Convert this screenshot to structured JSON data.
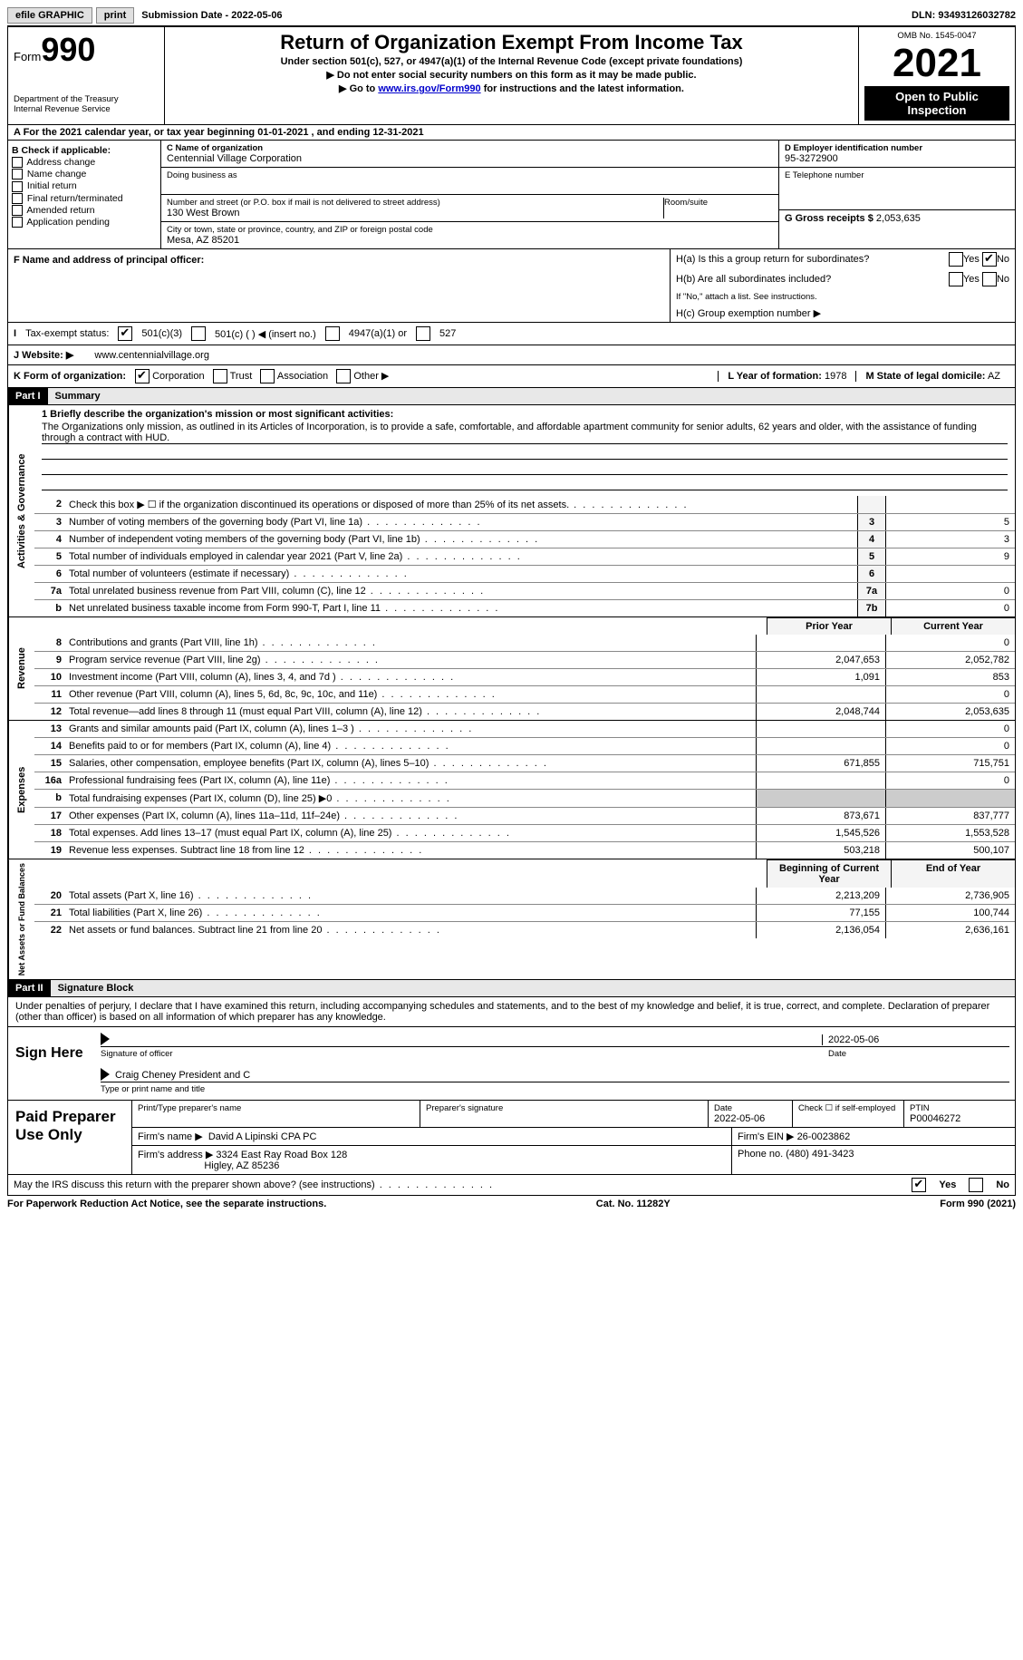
{
  "topbar": {
    "efile": "efile GRAPHIC",
    "print": "print",
    "subdate_label": "Submission Date - ",
    "subdate": "2022-05-06",
    "dln_label": "DLN: ",
    "dln": "93493126032782"
  },
  "header": {
    "form_label": "Form",
    "form_no": "990",
    "dept": "Department of the Treasury",
    "irs": "Internal Revenue Service",
    "title": "Return of Organization Exempt From Income Tax",
    "sub1": "Under section 501(c), 527, or 4947(a)(1) of the Internal Revenue Code (except private foundations)",
    "sub2": "▶ Do not enter social security numbers on this form as it may be made public.",
    "sub3_a": "▶ Go to ",
    "sub3_link": "www.irs.gov/Form990",
    "sub3_b": " for instructions and the latest information.",
    "omb": "OMB No. 1545-0047",
    "year": "2021",
    "open": "Open to Public Inspection"
  },
  "row_a": "A For the 2021 calendar year, or tax year beginning 01-01-2021   , and ending 12-31-2021",
  "b": {
    "label": "B Check if applicable:",
    "items": [
      "Address change",
      "Name change",
      "Initial return",
      "Final return/terminated",
      "Amended return",
      "Application pending"
    ]
  },
  "c": {
    "name_lbl": "C Name of organization",
    "name": "Centennial Village Corporation",
    "dba_lbl": "Doing business as",
    "addr_lbl": "Number and street (or P.O. box if mail is not delivered to street address)",
    "room_lbl": "Room/suite",
    "addr": "130 West Brown",
    "city_lbl": "City or town, state or province, country, and ZIP or foreign postal code",
    "city": "Mesa, AZ  85201"
  },
  "d": {
    "lbl": "D Employer identification number",
    "val": "95-3272900"
  },
  "e": {
    "lbl": "E Telephone number",
    "val": ""
  },
  "g": {
    "lbl": "G Gross receipts $",
    "val": "2,053,635"
  },
  "f": {
    "lbl": "F  Name and address of principal officer:",
    "val": ""
  },
  "h": {
    "a_lbl": "H(a)  Is this a group return for subordinates?",
    "b_lbl": "H(b)  Are all subordinates included?",
    "note": "If \"No,\" attach a list. See instructions.",
    "c_lbl": "H(c)  Group exemption number ▶",
    "yes": "Yes",
    "no": "No"
  },
  "i": {
    "lbl": "Tax-exempt status:",
    "opt1": "501(c)(3)",
    "opt2": "501(c) (  ) ◀ (insert no.)",
    "opt3": "4947(a)(1) or",
    "opt4": "527"
  },
  "j": {
    "lbl": "J  Website: ▶",
    "val": "www.centennialvillage.org"
  },
  "k": {
    "lbl": "K Form of organization:",
    "opts": [
      "Corporation",
      "Trust",
      "Association",
      "Other ▶"
    ],
    "l_lbl": "L Year of formation:",
    "l_val": "1978",
    "m_lbl": "M State of legal domicile:",
    "m_val": "AZ"
  },
  "part1": {
    "tag": "Part I",
    "title": "Summary"
  },
  "mission": {
    "q": "1  Briefly describe the organization's mission or most significant activities:",
    "text": "The Organizations only mission, as outlined in its Articles of Incorporation, is to provide a safe, comfortable, and affordable apartment community for senior adults, 62 years and older, with the assistance of funding through a contract with HUD."
  },
  "gov_lines": [
    {
      "n": "2",
      "t": "Check this box ▶ ☐  if the organization discontinued its operations or disposed of more than 25% of its net assets.",
      "box": "",
      "v": ""
    },
    {
      "n": "3",
      "t": "Number of voting members of the governing body (Part VI, line 1a)",
      "box": "3",
      "v": "5"
    },
    {
      "n": "4",
      "t": "Number of independent voting members of the governing body (Part VI, line 1b)",
      "box": "4",
      "v": "3"
    },
    {
      "n": "5",
      "t": "Total number of individuals employed in calendar year 2021 (Part V, line 2a)",
      "box": "5",
      "v": "9"
    },
    {
      "n": "6",
      "t": "Total number of volunteers (estimate if necessary)",
      "box": "6",
      "v": ""
    },
    {
      "n": "7a",
      "t": "Total unrelated business revenue from Part VIII, column (C), line 12",
      "box": "7a",
      "v": "0"
    },
    {
      "n": "b",
      "t": "Net unrelated business taxable income from Form 990-T, Part I, line 11",
      "box": "7b",
      "v": "0"
    }
  ],
  "rev_hdr": {
    "prior": "Prior Year",
    "curr": "Current Year"
  },
  "rev_lines": [
    {
      "n": "8",
      "t": "Contributions and grants (Part VIII, line 1h)",
      "p": "",
      "c": "0"
    },
    {
      "n": "9",
      "t": "Program service revenue (Part VIII, line 2g)",
      "p": "2,047,653",
      "c": "2,052,782"
    },
    {
      "n": "10",
      "t": "Investment income (Part VIII, column (A), lines 3, 4, and 7d )",
      "p": "1,091",
      "c": "853"
    },
    {
      "n": "11",
      "t": "Other revenue (Part VIII, column (A), lines 5, 6d, 8c, 9c, 10c, and 11e)",
      "p": "",
      "c": "0"
    },
    {
      "n": "12",
      "t": "Total revenue—add lines 8 through 11 (must equal Part VIII, column (A), line 12)",
      "p": "2,048,744",
      "c": "2,053,635"
    }
  ],
  "exp_lines": [
    {
      "n": "13",
      "t": "Grants and similar amounts paid (Part IX, column (A), lines 1–3 )",
      "p": "",
      "c": "0"
    },
    {
      "n": "14",
      "t": "Benefits paid to or for members (Part IX, column (A), line 4)",
      "p": "",
      "c": "0"
    },
    {
      "n": "15",
      "t": "Salaries, other compensation, employee benefits (Part IX, column (A), lines 5–10)",
      "p": "671,855",
      "c": "715,751"
    },
    {
      "n": "16a",
      "t": "Professional fundraising fees (Part IX, column (A), line 11e)",
      "p": "",
      "c": "0"
    },
    {
      "n": "b",
      "t": "Total fundraising expenses (Part IX, column (D), line 25) ▶0",
      "p": "grey",
      "c": "grey"
    },
    {
      "n": "17",
      "t": "Other expenses (Part IX, column (A), lines 11a–11d, 11f–24e)",
      "p": "873,671",
      "c": "837,777"
    },
    {
      "n": "18",
      "t": "Total expenses. Add lines 13–17 (must equal Part IX, column (A), line 25)",
      "p": "1,545,526",
      "c": "1,553,528"
    },
    {
      "n": "19",
      "t": "Revenue less expenses. Subtract line 18 from line 12",
      "p": "503,218",
      "c": "500,107"
    }
  ],
  "na_hdr": {
    "beg": "Beginning of Current Year",
    "end": "End of Year"
  },
  "na_lines": [
    {
      "n": "20",
      "t": "Total assets (Part X, line 16)",
      "p": "2,213,209",
      "c": "2,736,905"
    },
    {
      "n": "21",
      "t": "Total liabilities (Part X, line 26)",
      "p": "77,155",
      "c": "100,744"
    },
    {
      "n": "22",
      "t": "Net assets or fund balances. Subtract line 21 from line 20",
      "p": "2,136,054",
      "c": "2,636,161"
    }
  ],
  "part2": {
    "tag": "Part II",
    "title": "Signature Block"
  },
  "sig": {
    "intro": "Under penalties of perjury, I declare that I have examined this return, including accompanying schedules and statements, and to the best of my knowledge and belief, it is true, correct, and complete. Declaration of preparer (other than officer) is based on all information of which preparer has any knowledge.",
    "sign_here": "Sign Here",
    "sig_officer": "Signature of officer",
    "date": "Date",
    "date_val": "2022-05-06",
    "name_val": "Craig Cheney  President and C",
    "name_lbl": "Type or print name and title"
  },
  "paid": {
    "lbl": "Paid Preparer Use Only",
    "h1": "Print/Type preparer's name",
    "h2": "Preparer's signature",
    "h3_lbl": "Date",
    "h3_val": "2022-05-06",
    "h4": "Check ☐ if self-employed",
    "h5_lbl": "PTIN",
    "h5_val": "P00046272",
    "firm_lbl": "Firm's name    ▶",
    "firm_val": "David A Lipinski CPA PC",
    "ein_lbl": "Firm's EIN ▶",
    "ein_val": "26-0023862",
    "addr_lbl": "Firm's address ▶",
    "addr_val1": "3324 East Ray Road Box 128",
    "addr_val2": "Higley, AZ  85236",
    "phone_lbl": "Phone no.",
    "phone_val": "(480) 491-3423"
  },
  "footer": {
    "q": "May the IRS discuss this return with the preparer shown above? (see instructions)",
    "yes": "Yes",
    "no": "No"
  },
  "lastline": {
    "l": "For Paperwork Reduction Act Notice, see the separate instructions.",
    "c": "Cat. No. 11282Y",
    "r": "Form 990 (2021)"
  },
  "vtabs": {
    "gov": "Activities & Governance",
    "rev": "Revenue",
    "exp": "Expenses",
    "na": "Net Assets or Fund Balances"
  }
}
